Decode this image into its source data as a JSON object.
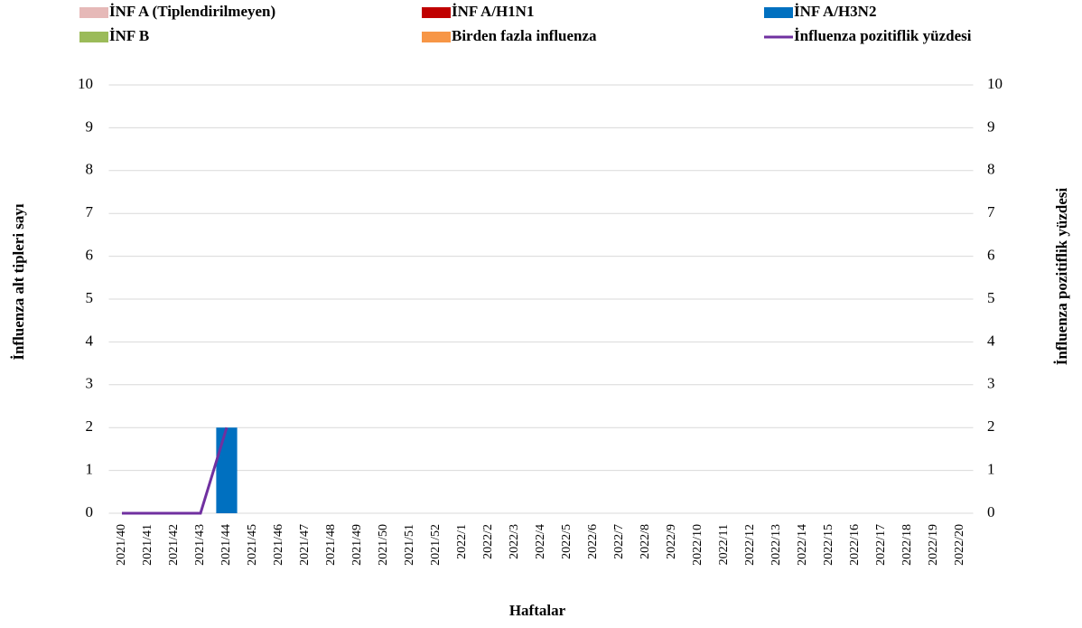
{
  "chart_data": {
    "type": "bar",
    "stacked": true,
    "x_label": "Haftalar",
    "y_label": "İnfluenza alt tipleri sayı",
    "y2_label": "İnfluenza pozitiflik yüzdesi",
    "categories": [
      "2021/40",
      "2021/41",
      "2021/42",
      "2021/43",
      "2021/44",
      "2021/45",
      "2021/46",
      "2021/47",
      "2021/48",
      "2021/49",
      "2021/50",
      "2021/51",
      "2021/52",
      "2022/1",
      "2022/2",
      "2022/3",
      "2022/4",
      "2022/5",
      "2022/6",
      "2022/7",
      "2022/8",
      "2022/9",
      "2022/10",
      "2022/11",
      "2022/12",
      "2022/13",
      "2022/14",
      "2022/15",
      "2022/16",
      "2022/17",
      "2022/18",
      "2022/19",
      "2022/20"
    ],
    "series": [
      {
        "name": "İNF A (Tiplendirilmeyen)",
        "color": "#e6b9b8",
        "values": [
          0,
          0,
          0,
          0,
          0,
          null,
          null,
          null,
          null,
          null,
          null,
          null,
          null,
          null,
          null,
          null,
          null,
          null,
          null,
          null,
          null,
          null,
          null,
          null,
          null,
          null,
          null,
          null,
          null,
          null,
          null,
          null,
          null
        ]
      },
      {
        "name": "İNF A/H1N1",
        "color": "#c00000",
        "values": [
          0,
          0,
          0,
          0,
          0,
          null,
          null,
          null,
          null,
          null,
          null,
          null,
          null,
          null,
          null,
          null,
          null,
          null,
          null,
          null,
          null,
          null,
          null,
          null,
          null,
          null,
          null,
          null,
          null,
          null,
          null,
          null,
          null
        ]
      },
      {
        "name": "İNF A/H3N2",
        "color": "#0070c0",
        "values": [
          0,
          0,
          0,
          0,
          2,
          null,
          null,
          null,
          null,
          null,
          null,
          null,
          null,
          null,
          null,
          null,
          null,
          null,
          null,
          null,
          null,
          null,
          null,
          null,
          null,
          null,
          null,
          null,
          null,
          null,
          null,
          null,
          null
        ]
      },
      {
        "name": "İNF B",
        "color": "#9bbb59",
        "values": [
          0,
          0,
          0,
          0,
          0,
          null,
          null,
          null,
          null,
          null,
          null,
          null,
          null,
          null,
          null,
          null,
          null,
          null,
          null,
          null,
          null,
          null,
          null,
          null,
          null,
          null,
          null,
          null,
          null,
          null,
          null,
          null,
          null
        ]
      },
      {
        "name": "Birden fazla influenza",
        "color": "#f79646",
        "values": [
          0,
          0,
          0,
          0,
          0,
          null,
          null,
          null,
          null,
          null,
          null,
          null,
          null,
          null,
          null,
          null,
          null,
          null,
          null,
          null,
          null,
          null,
          null,
          null,
          null,
          null,
          null,
          null,
          null,
          null,
          null,
          null,
          null
        ]
      },
      {
        "name": "İnfluenza pozitiflik yüzdesi",
        "color": "#7030a0",
        "type": "line",
        "axis": "y2",
        "values": [
          0,
          0,
          0,
          0,
          2,
          null,
          null,
          null,
          null,
          null,
          null,
          null,
          null,
          null,
          null,
          null,
          null,
          null,
          null,
          null,
          null,
          null,
          null,
          null,
          null,
          null,
          null,
          null,
          null,
          null,
          null,
          null,
          null
        ]
      }
    ],
    "ylim": [
      0,
      10
    ],
    "yticks": [
      0,
      1,
      2,
      3,
      4,
      5,
      6,
      7,
      8,
      9,
      10
    ],
    "y2lim": [
      0,
      10
    ],
    "y2ticks": [
      0,
      1,
      2,
      3,
      4,
      5,
      6,
      7,
      8,
      9,
      10
    ],
    "grid": true,
    "legend": "top"
  }
}
